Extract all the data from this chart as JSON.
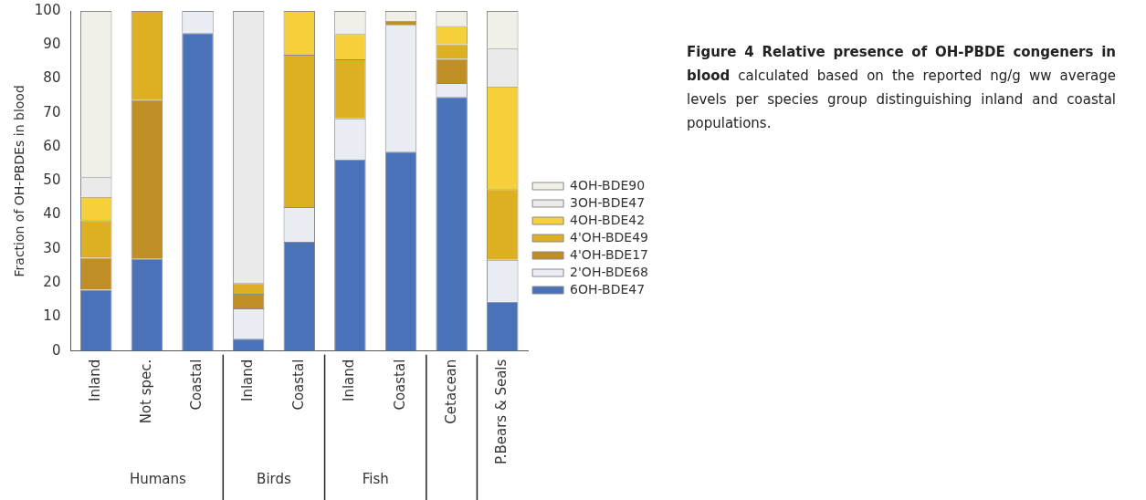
{
  "chart_data": {
    "type": "bar",
    "stacked": true,
    "title": "Figure 4 Relative presence of OH-PBDE congeners in blood",
    "subtitle": "calculated based on the reported ng/g ww average levels per species group distinguishing inland and coastal populations.",
    "ylabel": "Fraction of OH-PBDEs in blood",
    "categories": [
      "Inland",
      "Not spec.",
      "Coastal",
      "Inland",
      "Coastal",
      "Inland",
      "Coastal",
      "Cetacean",
      "P.Bears & Seals"
    ],
    "annotations": [
      "Humans",
      "Birds",
      "Fish"
    ],
    "ylim": [
      0,
      100
    ],
    "yticks": [
      0,
      10,
      20,
      30,
      40,
      50,
      60,
      70,
      80,
      90,
      100
    ],
    "grid": false,
    "legend": "right",
    "series": [
      {
        "name": "6OH-BDE47",
        "color": "#4a72b8",
        "values": [
          18.0,
          27.1,
          93.5,
          3.6,
          32.1,
          56.3,
          58.6,
          74.7,
          14.5
        ]
      },
      {
        "name": "2'OH-BDE68",
        "color": "#e9ecf2",
        "values": [
          0,
          0,
          6.5,
          8.9,
          10.2,
          12.1,
          37.3,
          4.1,
          12.3
        ]
      },
      {
        "name": "4'OH-BDE17",
        "color": "#bf8f26",
        "values": [
          9.4,
          46.7,
          0,
          4.3,
          0,
          0,
          1.2,
          7.1,
          0
        ]
      },
      {
        "name": "4'OH-BDE49",
        "color": "#ddb021",
        "values": [
          11.1,
          26.2,
          0,
          3.2,
          44.8,
          17.4,
          0,
          4.3,
          20.8
        ]
      },
      {
        "name": "4OH-BDE42",
        "color": "#f5d03a",
        "values": [
          6.8,
          0,
          0,
          0,
          12.9,
          7.4,
          0,
          5.4,
          30.2
        ]
      },
      {
        "name": "3OH-BDE47",
        "color": "#eaeaea",
        "values": [
          5.8,
          0,
          0,
          80.0,
          0,
          0,
          0,
          0,
          11.1
        ]
      },
      {
        "name": "4OH-BDE90",
        "color": "#f0f0e8",
        "values": [
          48.9,
          0,
          0,
          0,
          0,
          6.8,
          2.9,
          4.4,
          11.1
        ]
      }
    ]
  }
}
